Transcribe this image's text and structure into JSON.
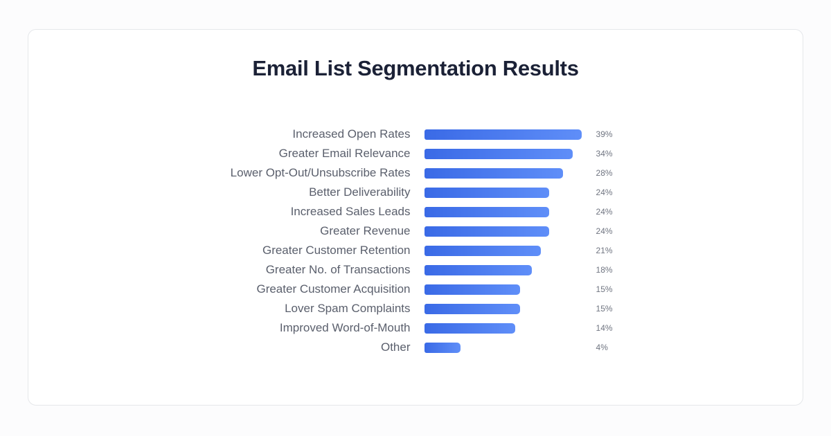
{
  "chart_data": {
    "type": "bar",
    "orientation": "horizontal",
    "title": "Email List Segmentation Results",
    "categories": [
      "Increased Open Rates",
      "Greater Email Relevance",
      "Lower Opt-Out/Unsubscribe Rates",
      "Better Deliverability",
      "Increased Sales Leads",
      "Greater Revenue",
      "Greater Customer Retention",
      "Greater No. of Transactions",
      "Greater Customer Acquisition",
      "Lover Spam Complaints",
      "Improved Word-of-Mouth",
      "Other"
    ],
    "values": [
      39,
      34,
      28,
      24,
      24,
      24,
      21,
      18,
      15,
      15,
      14,
      4
    ],
    "value_labels": [
      "39%",
      "34%",
      "28%",
      "24%",
      "24%",
      "24%",
      "21%",
      "18%",
      "15%",
      "15%",
      "14%",
      "4%"
    ],
    "unit": "%",
    "xlim": [
      0,
      39
    ],
    "grid": false,
    "legend": false,
    "bar_gradient": [
      "#3a6ae6",
      "#5f8ef8"
    ],
    "rendered_bar_pct_of_track": [
      100,
      94.3,
      88.5,
      79.3,
      79.3,
      79.3,
      74.4,
      68.3,
      60.8,
      60.8,
      58.1,
      23.3
    ]
  },
  "colors": {
    "page_background": "#fcfcfd",
    "card_background": "#ffffff",
    "card_border": "#e5e7ea",
    "title_text": "#1b2136",
    "category_label_text": "#5a5f6c",
    "value_label_text": "#6f7480"
  }
}
